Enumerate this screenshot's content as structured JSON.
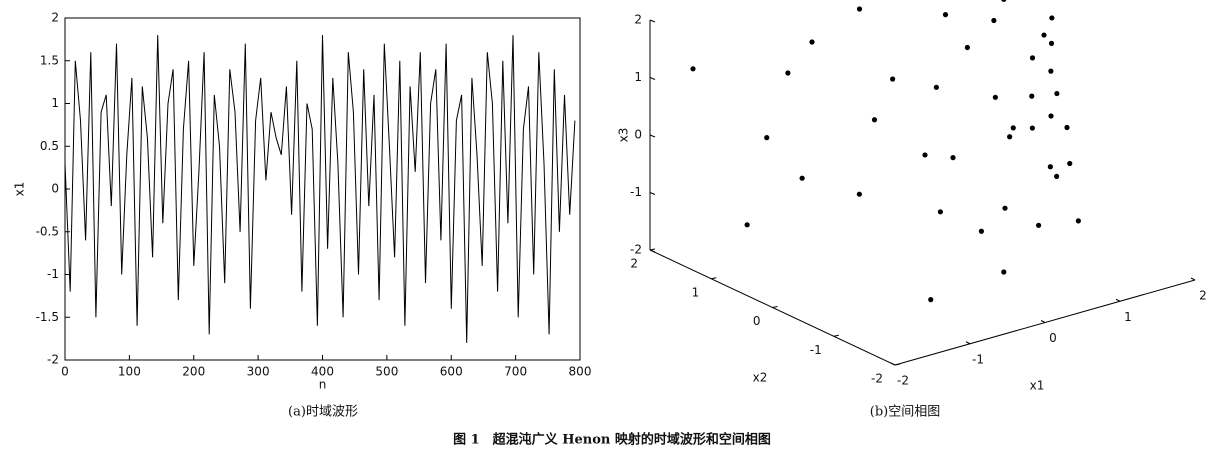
{
  "chart_data": [
    {
      "type": "line",
      "caption": "(a)时域波形",
      "xlabel": "n",
      "ylabel": "x1",
      "color": "#000000",
      "x": [
        0,
        8,
        16,
        24,
        32,
        40,
        48,
        56,
        64,
        72,
        80,
        88,
        96,
        104,
        112,
        120,
        128,
        136,
        144,
        152,
        160,
        168,
        176,
        184,
        192,
        200,
        208,
        216,
        224,
        232,
        240,
        248,
        256,
        264,
        272,
        280,
        288,
        296,
        304,
        312,
        320,
        328,
        336,
        344,
        352,
        360,
        368,
        376,
        384,
        392,
        400,
        408,
        416,
        424,
        432,
        440,
        448,
        456,
        464,
        472,
        480,
        488,
        496,
        504,
        512,
        520,
        528,
        536,
        544,
        552,
        560,
        568,
        576,
        584,
        592,
        600,
        608,
        616,
        624,
        632,
        640,
        648,
        656,
        664,
        672,
        680,
        688,
        696,
        704,
        712,
        720,
        728,
        736,
        744,
        752,
        760,
        768,
        776,
        784,
        792
      ],
      "values": [
        0.3,
        -1.2,
        1.5,
        0.8,
        -0.6,
        1.6,
        -1.5,
        0.9,
        1.1,
        -0.2,
        1.7,
        -1.0,
        0.4,
        1.3,
        -1.6,
        1.2,
        0.6,
        -0.8,
        1.8,
        -0.4,
        1.0,
        1.4,
        -1.3,
        0.7,
        1.5,
        -0.9,
        0.2,
        1.6,
        -1.7,
        1.1,
        0.5,
        -1.1,
        1.4,
        0.9,
        -0.5,
        1.7,
        -1.4,
        0.8,
        1.3,
        0.1,
        0.9,
        0.6,
        0.4,
        1.2,
        -0.3,
        1.5,
        -1.2,
        1.0,
        0.7,
        -1.6,
        1.8,
        -0.7,
        1.3,
        0.3,
        -1.5,
        1.6,
        0.9,
        -1.0,
        1.4,
        -0.2,
        1.1,
        -1.3,
        1.7,
        0.5,
        -0.8,
        1.5,
        -1.6,
        1.2,
        0.2,
        1.6,
        -1.1,
        1.0,
        1.4,
        -0.6,
        1.7,
        -1.4,
        0.8,
        1.1,
        -1.8,
        1.3,
        0.4,
        -0.9,
        1.6,
        1.0,
        -1.2,
        1.5,
        -0.4,
        1.8,
        -1.5,
        0.7,
        1.2,
        -1.0,
        1.6,
        0.3,
        -1.7,
        1.4,
        -0.5,
        1.1,
        -0.3,
        0.8
      ],
      "xlim": [
        0,
        800
      ],
      "xticks": [
        0,
        100,
        200,
        300,
        400,
        500,
        600,
        700,
        800
      ],
      "ylim": [
        -2,
        2
      ],
      "yticks": [
        -2,
        -1.5,
        -1,
        -0.5,
        0,
        0.5,
        1,
        1.5,
        2
      ]
    },
    {
      "type": "scatter3d",
      "caption": "(b)空间相图",
      "xlabel": "x1",
      "ylabel": "x2",
      "zlabel": "x3",
      "color": "#000000",
      "x": [
        1.36,
        0.14,
        1.48,
        -0.57,
        0.64,
        0.92,
        -0.44,
        1.87,
        -0.95,
        1.06,
        1.71,
        -0.09,
        0.85,
        1.67,
        -0.33,
        -1.15,
        1.17,
        1.71,
        -0.77,
        0.65,
        1.41,
        1.23,
        0.5,
        -0.06,
        1.63,
        0.22,
        0.97,
        1.59,
        -0.9,
        -1.59,
        1.8,
        0.96,
        0.23,
        -0.38,
        1.6,
        1.62,
        -1.36,
        0.34,
        1.14,
        1.57
      ],
      "y": [
        0.5,
        1.2,
        -0.3,
        1.5,
        -1.0,
        0.9,
        -1.5,
        0.1,
        1.7,
        -0.8,
        0.3,
        -1.3,
        1.0,
        -0.5,
        1.4,
        -1.7,
        0.7,
        -0.1,
        1.6,
        -1.1,
        0.4,
        -0.6,
        1.1,
        -1.4,
        0.2,
        1.3,
        -0.9,
        0.6,
        -1.6,
        1.8,
        -0.2,
        0.8,
        -1.2,
        1.5,
        -0.4,
        0.0,
        -1.8,
        1.2,
        -0.7,
        0.5
      ],
      "z": [
        1.5,
        1.8,
        1.9,
        0.8,
        1.2,
        0.3,
        -0.5,
        -1.2,
        -1.8,
        0.6,
        -0.4,
        1.6,
        -0.9,
        -1.6,
        1.3,
        0.2,
        1.0,
        0.4,
        -0.3,
        -1.0,
        1.9,
        1.7,
        0.5,
        -1.4,
        0.9,
        -1.5,
        -0.2,
        -1.9,
        1.0,
        1.1,
        -0.8,
        1.6,
        0.9,
        -1.1,
        0.0,
        1.4,
        -1.2,
        -0.2,
        1.3,
        -0.6
      ],
      "xlim": [
        -2,
        2
      ],
      "xticks": [
        -2,
        -1,
        0,
        1,
        2
      ],
      "ylim": [
        -2,
        2
      ],
      "yticks": [
        -2,
        -1,
        0,
        1,
        2
      ],
      "zlim": [
        -2,
        2
      ],
      "zticks": [
        -2,
        -1,
        0,
        1,
        2
      ]
    }
  ],
  "figure_caption": "图 1　超混沌广义 Henon 映射的时域波形和空间相图"
}
